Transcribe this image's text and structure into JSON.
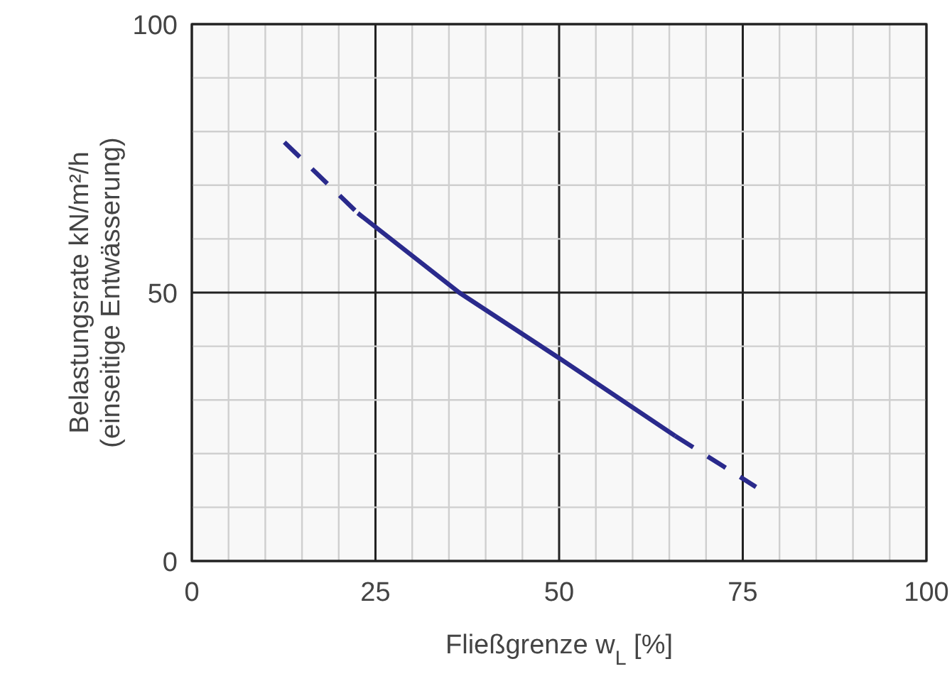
{
  "chart_data": {
    "type": "line",
    "xlabel": "Fließgrenze w$_{L}$ [%]",
    "ylabel": "Belastungsrate kN/m²/h\n(einseitige Entwässerung)",
    "xlim": [
      0,
      100
    ],
    "ylim": [
      0,
      100
    ],
    "xticks": [
      0,
      {
        "value": 5,
        "label": null
      },
      {
        "value": 10,
        "label": null
      },
      {
        "value": 15,
        "label": null
      },
      {
        "value": 20,
        "label": null
      },
      25,
      {
        "value": 30,
        "label": null
      },
      {
        "value": 35,
        "label": null
      },
      {
        "value": 40,
        "label": null
      },
      {
        "value": 45,
        "label": null
      },
      50,
      {
        "value": 55,
        "label": null
      },
      {
        "value": 60,
        "label": null
      },
      {
        "value": 65,
        "label": null
      },
      {
        "value": 70,
        "label": null
      },
      75,
      {
        "value": 80,
        "label": null
      },
      {
        "value": 85,
        "label": null
      },
      {
        "value": 90,
        "label": null
      },
      {
        "value": 95,
        "label": null
      },
      100
    ],
    "yticks": [
      0,
      {
        "value": 10,
        "label": null
      },
      {
        "value": 20,
        "label": null
      },
      {
        "value": 30,
        "label": null
      },
      {
        "value": 40,
        "label": null
      },
      50,
      {
        "value": 60,
        "label": null
      },
      {
        "value": 70,
        "label": null
      },
      {
        "value": 80,
        "label": null
      },
      {
        "value": 90,
        "label": null
      },
      100
    ],
    "grid": true,
    "marker": "none",
    "series": [
      {
        "color": "#2a2a8c",
        "line_style": "dashed",
        "x": [
          12.6,
          22.6
        ],
        "values": [
          78,
          64.8
        ]
      },
      {
        "color": "#2a2a8c",
        "line_style": "solid",
        "x": [
          22.6,
          36.4,
          50,
          65.8
        ],
        "values": [
          64.8,
          50,
          37.8,
          23.3
        ]
      },
      {
        "color": "#2a2a8c",
        "line_style": "dashed",
        "x": [
          65.8,
          76.8
        ],
        "values": [
          23.3,
          13.8
        ]
      }
    ]
  }
}
